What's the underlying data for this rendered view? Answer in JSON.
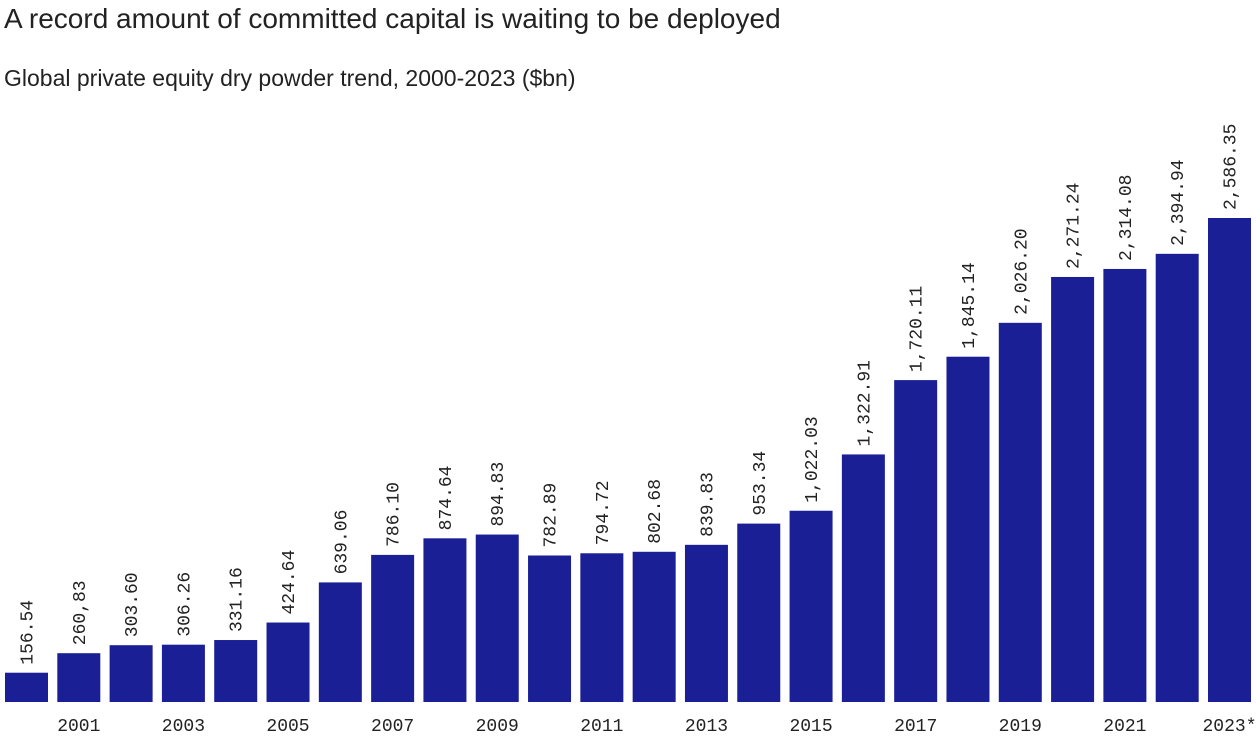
{
  "chart_data": {
    "type": "bar",
    "title": "A record amount of committed capital is waiting to be deployed",
    "subtitle": "Global private equity dry powder trend, 2000-2023 ($bn)",
    "categories": [
      null,
      "2001",
      null,
      "2003",
      null,
      "2005",
      null,
      "2007",
      null,
      "2009",
      null,
      "2011",
      null,
      "2013",
      null,
      "2015",
      null,
      "2017",
      null,
      "2019",
      null,
      "2021",
      null,
      "2023*"
    ],
    "values": [
      156.54,
      260.83,
      303.6,
      306.26,
      331.16,
      424.64,
      639.06,
      786.1,
      874.64,
      894.83,
      782.89,
      794.72,
      802.68,
      839.83,
      953.34,
      1022.03,
      1322.91,
      1720.11,
      1845.14,
      2026.2,
      2271.24,
      2314.08,
      2394.94,
      2586.35
    ],
    "value_labels": [
      "156.54",
      "260,83",
      "303.60",
      "306.26",
      "331.16",
      "424.64",
      "639.06",
      "786.10",
      "874.64",
      "894.83",
      "782.89",
      "794.72",
      "802.68",
      "839.83",
      "953.34",
      "1,022.03",
      "1,322.91",
      "1,720.11",
      "1,845.14",
      "2,026.20",
      "2,271.24",
      "2,314.08",
      "2,394.94",
      "2,586.35"
    ],
    "color": "#1a1f96"
  }
}
